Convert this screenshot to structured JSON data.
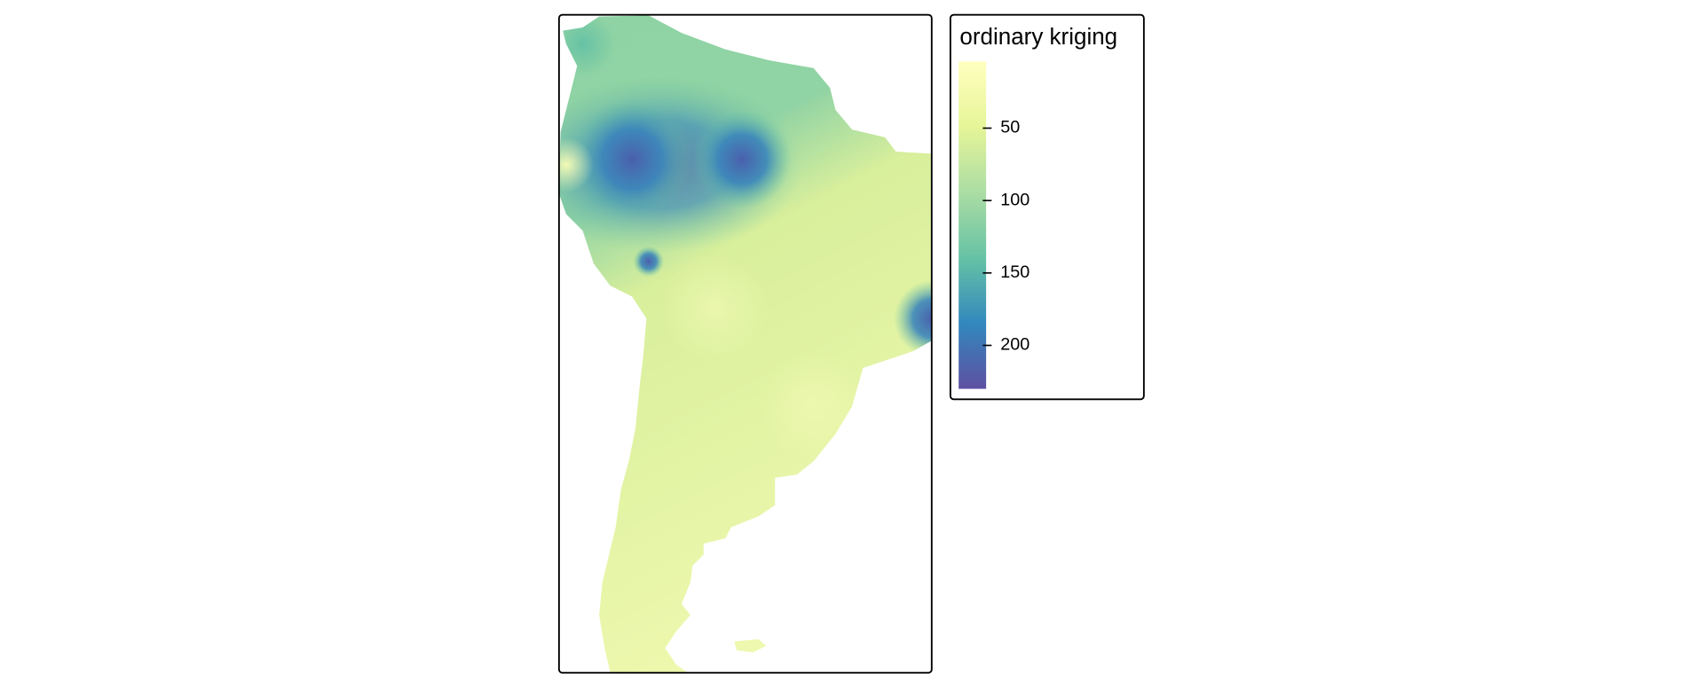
{
  "legend": {
    "title": "ordinary kriging",
    "limits": [
      4,
      230
    ],
    "ticks": [
      50,
      100,
      150,
      200
    ],
    "colors": [
      "#ffffbf",
      "#e6f598",
      "#abdda4",
      "#66c2a5",
      "#3288bd",
      "#5e4fa2"
    ]
  }
}
